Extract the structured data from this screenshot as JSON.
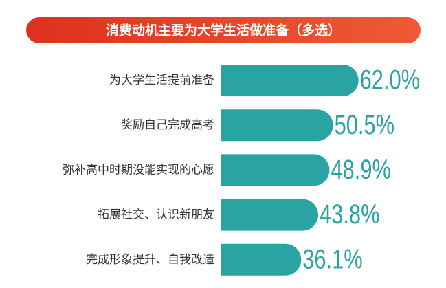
{
  "chart_data": {
    "type": "bar",
    "orientation": "horizontal",
    "title": "消费动机主要为大学生活做准备（多选）",
    "categories": [
      "为大学生活提前准备",
      "奖励自己完成高考",
      "弥补高中时期没能实现的心愿",
      "拓展社交、认识新朋友",
      "完成形象提升、自我改造"
    ],
    "values": [
      62.0,
      50.5,
      48.9,
      43.8,
      36.1
    ],
    "value_labels": [
      "62.0%",
      "50.5%",
      "48.9%",
      "43.8%",
      "36.1%"
    ],
    "color": "#2aa3a3"
  }
}
